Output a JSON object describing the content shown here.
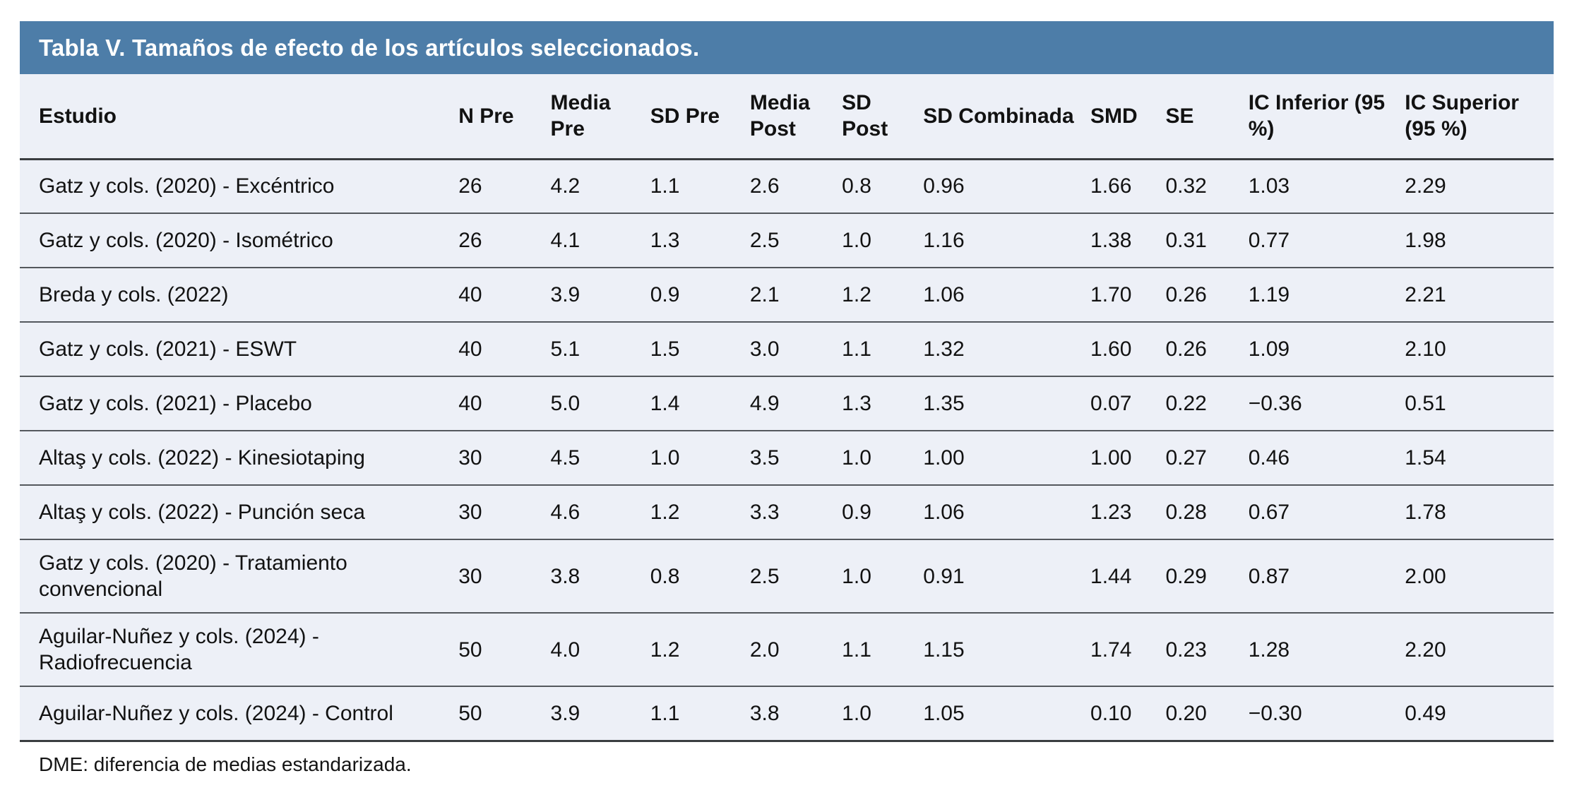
{
  "colors": {
    "title_bar_bg": "#4D7DA8",
    "title_text": "#FFFFFF",
    "table_bg": "#EDF0F7",
    "body_text": "#121212",
    "row_divider": "#54585D"
  },
  "table": {
    "title": "Tabla V. Tamaños de efecto de los artículos seleccionados.",
    "columns": [
      "Estudio",
      "N Pre",
      "Media Pre",
      "SD Pre",
      "Media Post",
      "SD Post",
      "SD Combinada",
      "SMD",
      "SE",
      "IC Inferior (95 %)",
      "IC Superior (95 %)"
    ],
    "rows": [
      [
        "Gatz y cols. (2020) - Excéntrico",
        "26",
        "4.2",
        "1.1",
        "2.6",
        "0.8",
        "0.96",
        "1.66",
        "0.32",
        "1.03",
        "2.29"
      ],
      [
        "Gatz y cols. (2020) - Isométrico",
        "26",
        "4.1",
        "1.3",
        "2.5",
        "1.0",
        "1.16",
        "1.38",
        "0.31",
        "0.77",
        "1.98"
      ],
      [
        "Breda y cols. (2022)",
        "40",
        "3.9",
        "0.9",
        "2.1",
        "1.2",
        "1.06",
        "1.70",
        "0.26",
        "1.19",
        "2.21"
      ],
      [
        "Gatz y cols. (2021) - ESWT",
        "40",
        "5.1",
        "1.5",
        "3.0",
        "1.1",
        "1.32",
        "1.60",
        "0.26",
        "1.09",
        "2.10"
      ],
      [
        "Gatz y cols. (2021) - Placebo",
        "40",
        "5.0",
        "1.4",
        "4.9",
        "1.3",
        "1.35",
        "0.07",
        "0.22",
        "−0.36",
        "0.51"
      ],
      [
        "Altaş y cols. (2022) - Kinesiotaping",
        "30",
        "4.5",
        "1.0",
        "3.5",
        "1.0",
        "1.00",
        "1.00",
        "0.27",
        "0.46",
        "1.54"
      ],
      [
        "Altaş y cols. (2022) - Punción seca",
        "30",
        "4.6",
        "1.2",
        "3.3",
        "0.9",
        "1.06",
        "1.23",
        "0.28",
        "0.67",
        "1.78"
      ],
      [
        "Gatz y cols. (2020) - Tratamiento convencional",
        "30",
        "3.8",
        "0.8",
        "2.5",
        "1.0",
        "0.91",
        "1.44",
        "0.29",
        "0.87",
        "2.00"
      ],
      [
        "Aguilar-Nuñez y cols. (2024) - Radiofrecuencia",
        "50",
        "4.0",
        "1.2",
        "2.0",
        "1.1",
        "1.15",
        "1.74",
        "0.23",
        "1.28",
        "2.20"
      ],
      [
        "Aguilar-Nuñez y cols. (2024) - Control",
        "50",
        "3.9",
        "1.1",
        "3.8",
        "1.0",
        "1.05",
        "0.10",
        "0.20",
        "−0.30",
        "0.49"
      ]
    ],
    "footnote": "DME: diferencia de medias estandarizada."
  }
}
